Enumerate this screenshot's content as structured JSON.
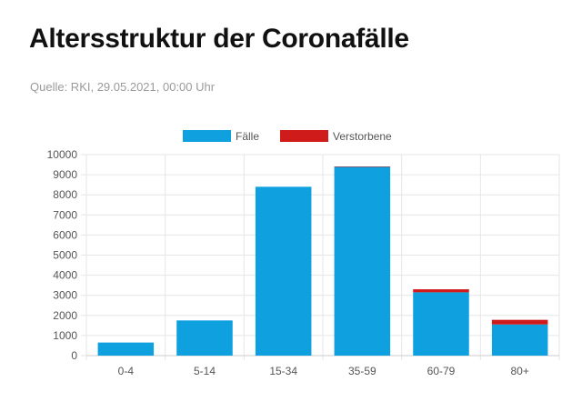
{
  "header": {
    "title": "Altersstruktur der Coronafälle",
    "source": "Quelle: RKI, 29.05.2021, 00:00 Uhr"
  },
  "colors": {
    "cases": "#0ea0df",
    "deaths": "#d01b1b",
    "grid": "#e6e6e6",
    "axis_text": "#555555"
  },
  "chart_data": {
    "type": "bar",
    "stacked": true,
    "categories": [
      "0-4",
      "5-14",
      "15-34",
      "35-59",
      "60-79",
      "80+"
    ],
    "series": [
      {
        "name": "Fälle",
        "values": [
          650,
          1750,
          8400,
          9400,
          3150,
          1550
        ]
      },
      {
        "name": "Verstorbene",
        "values": [
          0,
          0,
          0,
          10,
          150,
          230
        ]
      }
    ],
    "ylim": [
      0,
      10000
    ],
    "yticks": [
      0,
      1000,
      2000,
      3000,
      4000,
      5000,
      6000,
      7000,
      8000,
      9000,
      10000
    ],
    "grid": true,
    "legend": "top-center"
  }
}
